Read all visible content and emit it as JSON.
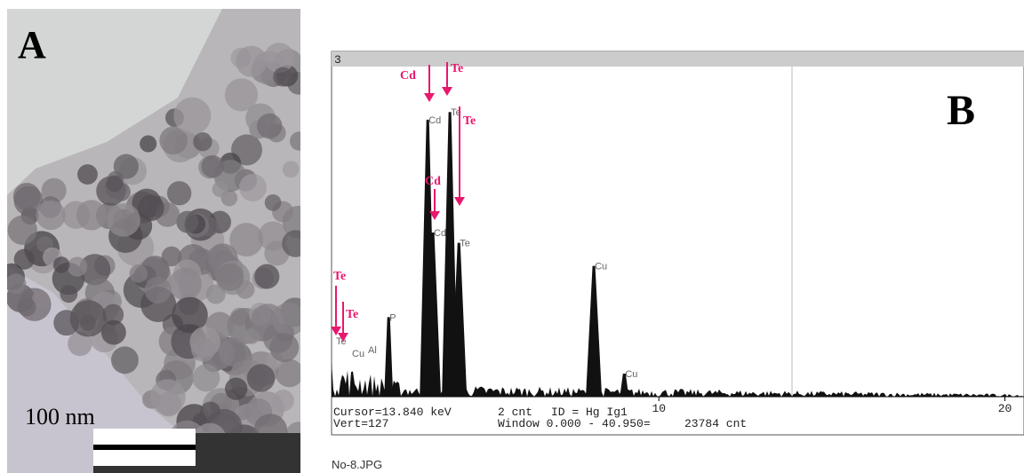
{
  "panel_a": {
    "label": "A",
    "scale_bar": "100 nm"
  },
  "panel_b": {
    "label": "B",
    "window_number": "3",
    "xlim": [
      0.54,
      20.5
    ],
    "xticks": [
      10,
      20
    ],
    "ylim": [
      0,
      127
    ],
    "peaks": [
      {
        "label": "P",
        "energy": 2.19,
        "height": 31
      },
      {
        "label": "Cd",
        "energy": 3.32,
        "height": 108
      },
      {
        "label": "Cd",
        "energy": 3.47,
        "height": 64
      },
      {
        "label": "Te",
        "energy": 3.96,
        "height": 111
      },
      {
        "label": "Te",
        "energy": 4.22,
        "height": 60
      },
      {
        "label": "Cu",
        "energy": 8.12,
        "height": 51
      },
      {
        "label": "Cu",
        "energy": 9.0,
        "height": 9
      }
    ],
    "minor_labels": [
      "Te",
      "Cu",
      "Al"
    ],
    "annotations": [
      "Cd",
      "Te",
      "Te",
      "Cd",
      "Te",
      "Te"
    ],
    "status_line_1": [
      "Cursor=13.840 keV",
      "2 cnt",
      "ID = Hg Ig1"
    ],
    "status_line_2": [
      "Vert=127",
      "Window 0.000 - 40.950=",
      "23784 cnt"
    ],
    "filename": "No-8.JPG"
  }
}
